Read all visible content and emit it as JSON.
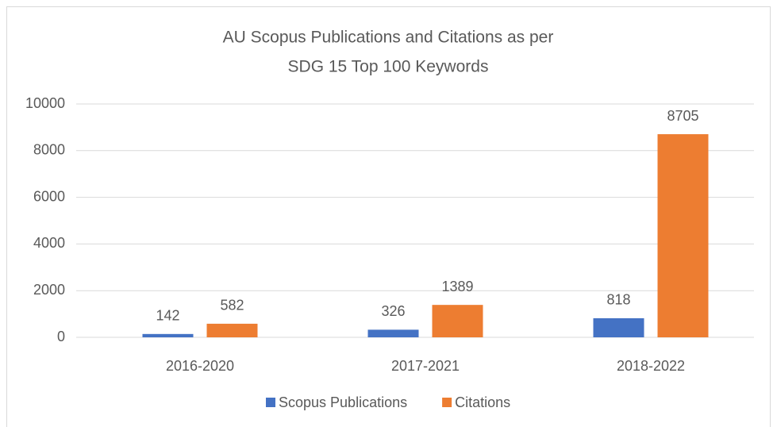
{
  "chart_data": {
    "type": "bar",
    "title": [
      "AU Scopus Publications and Citations as per",
      "SDG 15  Top 100 Keywords"
    ],
    "categories": [
      "2016-2020",
      "2017-2021",
      "2018-2022"
    ],
    "series": [
      {
        "name": "Scopus Publications",
        "color": "#4472c4",
        "values": [
          142,
          326,
          818
        ]
      },
      {
        "name": "Citations",
        "color": "#ed7d31",
        "values": [
          582,
          1389,
          8705
        ]
      }
    ],
    "ylim": [
      0,
      10000
    ],
    "yticks": [
      0,
      2000,
      4000,
      6000,
      8000,
      10000
    ],
    "grid": true,
    "legend": "bottom",
    "data_labels": true
  }
}
